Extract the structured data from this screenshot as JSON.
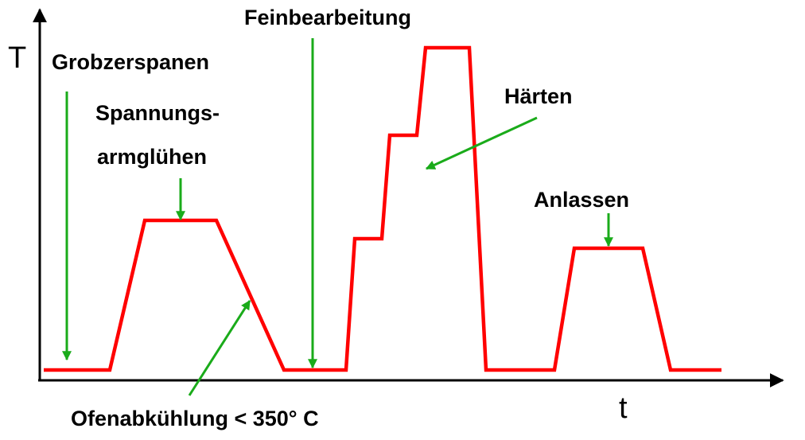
{
  "colors": {
    "curve": "#ff0000",
    "arrows": "#1aab1a",
    "axes": "#000000",
    "text": "#000000"
  },
  "axes": {
    "y_label": "T",
    "x_label": "t"
  },
  "labels": {
    "grobzerspanen": "Grobzerspanen",
    "spannung_line1": "Spannungs-",
    "spannung_line2": "armglühen",
    "feinbearbeitung": "Feinbearbeitung",
    "haerten": "Härten",
    "anlassen": "Anlassen",
    "ofenabkuehlung": "Ofenabkühlung < 350° C"
  }
}
